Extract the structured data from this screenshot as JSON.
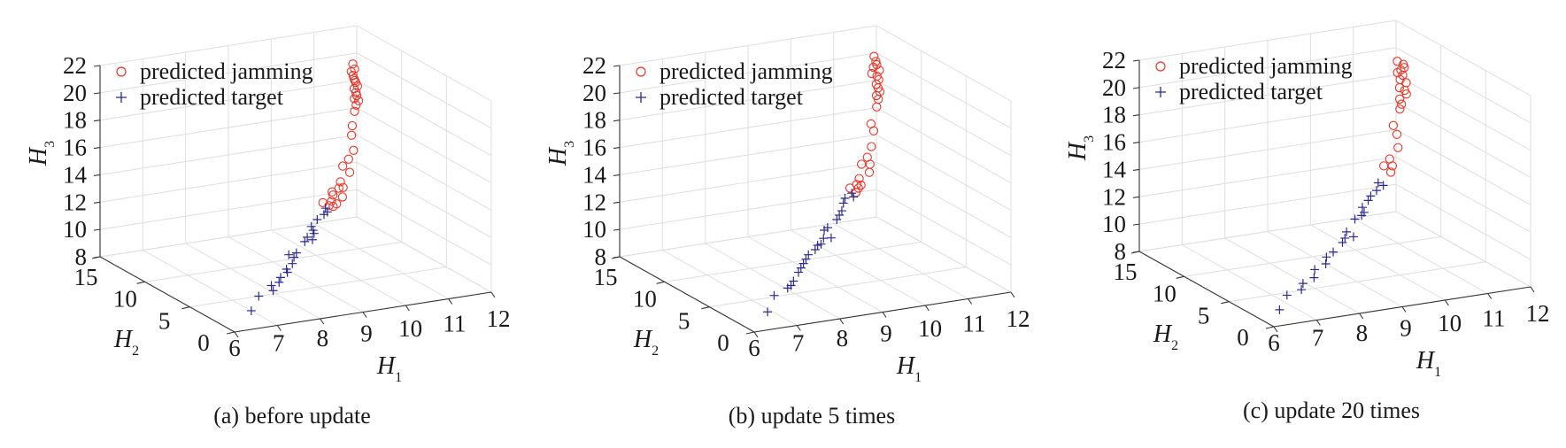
{
  "chart_data": [
    {
      "type": "scatter3d",
      "caption": "(a) before update",
      "xlabel": {
        "main": "H",
        "sub": "1"
      },
      "ylabel": {
        "main": "H",
        "sub": "2"
      },
      "zlabel": {
        "main": "H",
        "sub": "3"
      },
      "xlim": [
        6,
        12
      ],
      "ylim": [
        0,
        15
      ],
      "zlim": [
        8,
        22
      ],
      "xticks": [
        "6",
        "7",
        "8",
        "9",
        "10",
        "11",
        "12"
      ],
      "yticks": [
        "0",
        "5",
        "10",
        "15"
      ],
      "zticks": [
        "8",
        "10",
        "12",
        "14",
        "16",
        "18",
        "20",
        "22"
      ],
      "grid": true,
      "legend_position": "top-left",
      "series": [
        {
          "name": "predicted jamming",
          "marker": "circle",
          "color": "#e8352a",
          "points": [
            [
              11.3,
              12.1,
              20.6
            ],
            [
              11.3,
              11.9,
              20.3
            ],
            [
              11.2,
              11.6,
              20.0
            ],
            [
              11.2,
              11.5,
              19.8
            ],
            [
              11.2,
              11.3,
              19.6
            ],
            [
              11.2,
              11.1,
              19.4
            ],
            [
              11.1,
              11.0,
              19.3
            ],
            [
              11.1,
              10.8,
              19.1
            ],
            [
              11.1,
              10.7,
              18.9
            ],
            [
              11.0,
              10.5,
              18.8
            ],
            [
              11.2,
              11.4,
              19.7
            ],
            [
              11.2,
              11.8,
              20.2
            ],
            [
              11.0,
              10.3,
              18.4
            ],
            [
              10.9,
              10.0,
              18.1
            ],
            [
              11.1,
              10.5,
              18.6
            ],
            [
              10.7,
              9.3,
              17.4
            ],
            [
              10.6,
              8.9,
              16.9
            ],
            [
              10.5,
              8.2,
              16.1
            ],
            [
              10.3,
              7.8,
              15.7
            ],
            [
              10.1,
              7.5,
              15.4
            ],
            [
              10.2,
              7.2,
              15.0
            ],
            [
              9.9,
              6.8,
              14.6
            ],
            [
              9.9,
              6.5,
              14.3
            ],
            [
              9.8,
              6.5,
              14.3
            ],
            [
              9.6,
              6.2,
              14.0
            ],
            [
              9.8,
              6.1,
              13.8
            ],
            [
              9.5,
              5.9,
              13.7
            ],
            [
              9.6,
              5.8,
              13.5
            ],
            [
              9.4,
              5.7,
              13.5
            ],
            [
              9.3,
              5.9,
              13.7
            ],
            [
              9.5,
              5.7,
              13.4
            ],
            [
              9.6,
              6.3,
              14.2
            ]
          ]
        },
        {
          "name": "predicted target",
          "marker": "plus",
          "color": "#2b2b8f",
          "points": [
            [
              6.6,
              1.0,
              8.9
            ],
            [
              6.9,
              1.6,
              9.6
            ],
            [
              7.3,
              1.9,
              9.7
            ],
            [
              7.3,
              2.1,
              10.0
            ],
            [
              7.5,
              2.2,
              10.1
            ],
            [
              7.6,
              2.5,
              10.3
            ],
            [
              7.8,
              2.8,
              10.7
            ],
            [
              7.8,
              2.7,
              10.5
            ],
            [
              8.0,
              3.1,
              10.9
            ],
            [
              8.1,
              3.4,
              11.2
            ],
            [
              8.2,
              3.6,
              11.4
            ],
            [
              8.0,
              3.5,
              11.4
            ],
            [
              8.5,
              4.1,
              11.9
            ],
            [
              8.6,
              4.3,
              12.1
            ],
            [
              8.7,
              4.2,
              11.9
            ],
            [
              8.8,
              4.6,
              12.4
            ],
            [
              8.8,
              4.8,
              12.6
            ],
            [
              9.0,
              5.1,
              12.9
            ],
            [
              9.2,
              5.3,
              13.1
            ],
            [
              9.3,
              5.4,
              13.2
            ],
            [
              9.3,
              5.6,
              13.4
            ],
            [
              8.8,
              4.5,
              12.2
            ]
          ]
        }
      ]
    },
    {
      "type": "scatter3d",
      "caption": "(b) update 5 times",
      "xlabel": {
        "main": "H",
        "sub": "1"
      },
      "ylabel": {
        "main": "H",
        "sub": "2"
      },
      "zlabel": {
        "main": "H",
        "sub": "3"
      },
      "xlim": [
        6,
        12
      ],
      "ylim": [
        0,
        15
      ],
      "zlim": [
        8,
        22
      ],
      "xticks": [
        "6",
        "7",
        "8",
        "9",
        "10",
        "11",
        "12"
      ],
      "yticks": [
        "0",
        "5",
        "10",
        "15"
      ],
      "zticks": [
        "8",
        "10",
        "12",
        "14",
        "16",
        "18",
        "20",
        "22"
      ],
      "grid": true,
      "legend_position": "top-left",
      "series": [
        {
          "name": "predicted jamming",
          "marker": "circle",
          "color": "#e8352a",
          "points": [
            [
              11.4,
              12.4,
              21.0
            ],
            [
              11.4,
              12.2,
              20.7
            ],
            [
              11.3,
              12.0,
              20.4
            ],
            [
              11.4,
              11.8,
              20.2
            ],
            [
              11.3,
              11.6,
              19.9
            ],
            [
              11.3,
              11.4,
              19.7
            ],
            [
              11.2,
              11.2,
              19.5
            ],
            [
              11.2,
              11.0,
              19.3
            ],
            [
              11.2,
              10.8,
              19.1
            ],
            [
              11.1,
              10.7,
              18.9
            ],
            [
              11.1,
              10.5,
              18.7
            ],
            [
              11.2,
              11.7,
              20.1
            ],
            [
              11.4,
              12.1,
              20.5
            ],
            [
              11.0,
              10.2,
              18.3
            ],
            [
              10.7,
              9.4,
              17.5
            ],
            [
              10.7,
              9.1,
              17.1
            ],
            [
              10.5,
              8.4,
              16.3
            ],
            [
              10.3,
              7.9,
              15.8
            ],
            [
              10.1,
              7.6,
              15.5
            ],
            [
              10.3,
              7.6,
              15.4
            ],
            [
              10.2,
              7.2,
              15.0
            ],
            [
              9.9,
              6.9,
              14.8
            ],
            [
              9.8,
              6.7,
              14.5
            ],
            [
              9.9,
              6.7,
              14.4
            ],
            [
              9.6,
              6.5,
              14.4
            ],
            [
              9.8,
              6.5,
              14.3
            ],
            [
              9.7,
              6.3,
              14.1
            ]
          ]
        },
        {
          "name": "predicted target",
          "marker": "plus",
          "color": "#2b2b8f",
          "points": [
            [
              6.5,
              0.9,
              8.9
            ],
            [
              6.8,
              1.6,
              9.7
            ],
            [
              7.2,
              2.0,
              9.9
            ],
            [
              7.3,
              2.1,
              10.0
            ],
            [
              7.4,
              2.3,
              10.2
            ],
            [
              7.6,
              2.7,
              10.6
            ],
            [
              7.7,
              2.9,
              10.8
            ],
            [
              7.9,
              3.3,
              11.2
            ],
            [
              8.0,
              3.5,
              11.4
            ],
            [
              8.2,
              3.7,
              11.6
            ],
            [
              8.4,
              4.0,
              11.8
            ],
            [
              8.5,
              4.2,
              12.1
            ],
            [
              8.6,
              4.6,
              12.5
            ],
            [
              8.7,
              4.7,
              12.6
            ],
            [
              8.7,
              4.3,
              12.0
            ],
            [
              9.0,
              5.1,
              12.9
            ],
            [
              9.1,
              5.3,
              13.1
            ],
            [
              9.2,
              5.5,
              13.3
            ],
            [
              9.3,
              5.8,
              13.7
            ],
            [
              9.4,
              6.1,
              13.9
            ],
            [
              9.6,
              6.3,
              14.1
            ],
            [
              9.6,
              6.1,
              13.9
            ],
            [
              8.3,
              3.9,
              11.8
            ],
            [
              7.8,
              3.1,
              11.0
            ]
          ]
        }
      ]
    },
    {
      "type": "scatter3d",
      "caption": "(c) update 20 times",
      "xlabel": {
        "main": "H",
        "sub": "1"
      },
      "ylabel": {
        "main": "H",
        "sub": "2"
      },
      "zlabel": {
        "main": "H",
        "sub": "3"
      },
      "xlim": [
        6,
        12
      ],
      "ylim": [
        0,
        15
      ],
      "zlim": [
        8,
        22
      ],
      "xticks": [
        "6",
        "7",
        "8",
        "9",
        "10",
        "11",
        "12"
      ],
      "yticks": [
        "0",
        "5",
        "10",
        "15"
      ],
      "zticks": [
        "8",
        "10",
        "12",
        "14",
        "16",
        "18",
        "20",
        "22"
      ],
      "grid": true,
      "legend_position": "top-left",
      "series": [
        {
          "name": "predicted jamming",
          "marker": "circle",
          "color": "#e8352a",
          "points": [
            [
              11.4,
              12.0,
              20.4
            ],
            [
              11.5,
              11.8,
              20.2
            ],
            [
              11.4,
              11.6,
              19.9
            ],
            [
              11.4,
              11.4,
              19.6
            ],
            [
              11.3,
              11.2,
              19.4
            ],
            [
              11.4,
              11.0,
              19.2
            ],
            [
              11.2,
              10.8,
              19.0
            ],
            [
              11.3,
              10.7,
              18.8
            ],
            [
              11.3,
              10.5,
              18.6
            ],
            [
              11.1,
              10.3,
              18.4
            ],
            [
              11.3,
              11.5,
              19.8
            ],
            [
              11.5,
              11.7,
              20.0
            ],
            [
              11.1,
              10.1,
              18.1
            ],
            [
              11.0,
              9.8,
              17.9
            ],
            [
              10.7,
              9.1,
              17.1
            ],
            [
              10.7,
              8.7,
              16.6
            ],
            [
              10.6,
              8.1,
              15.9
            ],
            [
              10.3,
              7.6,
              15.4
            ],
            [
              10.1,
              7.3,
              15.1
            ],
            [
              10.3,
              7.3,
              15.0
            ],
            [
              10.2,
              7.0,
              14.7
            ]
          ]
        },
        {
          "name": "predicted target",
          "marker": "plus",
          "color": "#2b2b8f",
          "points": [
            [
              6.3,
              0.8,
              8.8
            ],
            [
              6.6,
              1.4,
              9.5
            ],
            [
              7.0,
              1.7,
              9.6
            ],
            [
              7.1,
              2.0,
              9.9
            ],
            [
              7.4,
              2.2,
              10.1
            ],
            [
              7.5,
              2.6,
              10.5
            ],
            [
              7.8,
              2.8,
              10.7
            ],
            [
              7.9,
              3.2,
              11.0
            ],
            [
              8.1,
              3.4,
              11.2
            ],
            [
              8.4,
              3.8,
              11.6
            ],
            [
              8.6,
              4.3,
              12.1
            ],
            [
              8.5,
              4.0,
              11.8
            ],
            [
              8.7,
              4.0,
              11.8
            ],
            [
              8.9,
              4.8,
              12.7
            ],
            [
              9.1,
              5.0,
              12.8
            ],
            [
              9.2,
              5.4,
              13.2
            ],
            [
              9.4,
              5.7,
              13.5
            ],
            [
              9.5,
              5.9,
              13.7
            ],
            [
              9.7,
              6.2,
              13.9
            ],
            [
              9.8,
              6.5,
              14.3
            ],
            [
              9.9,
              6.4,
              14.1
            ],
            [
              9.2,
              5.2,
              12.9
            ]
          ]
        }
      ]
    }
  ]
}
